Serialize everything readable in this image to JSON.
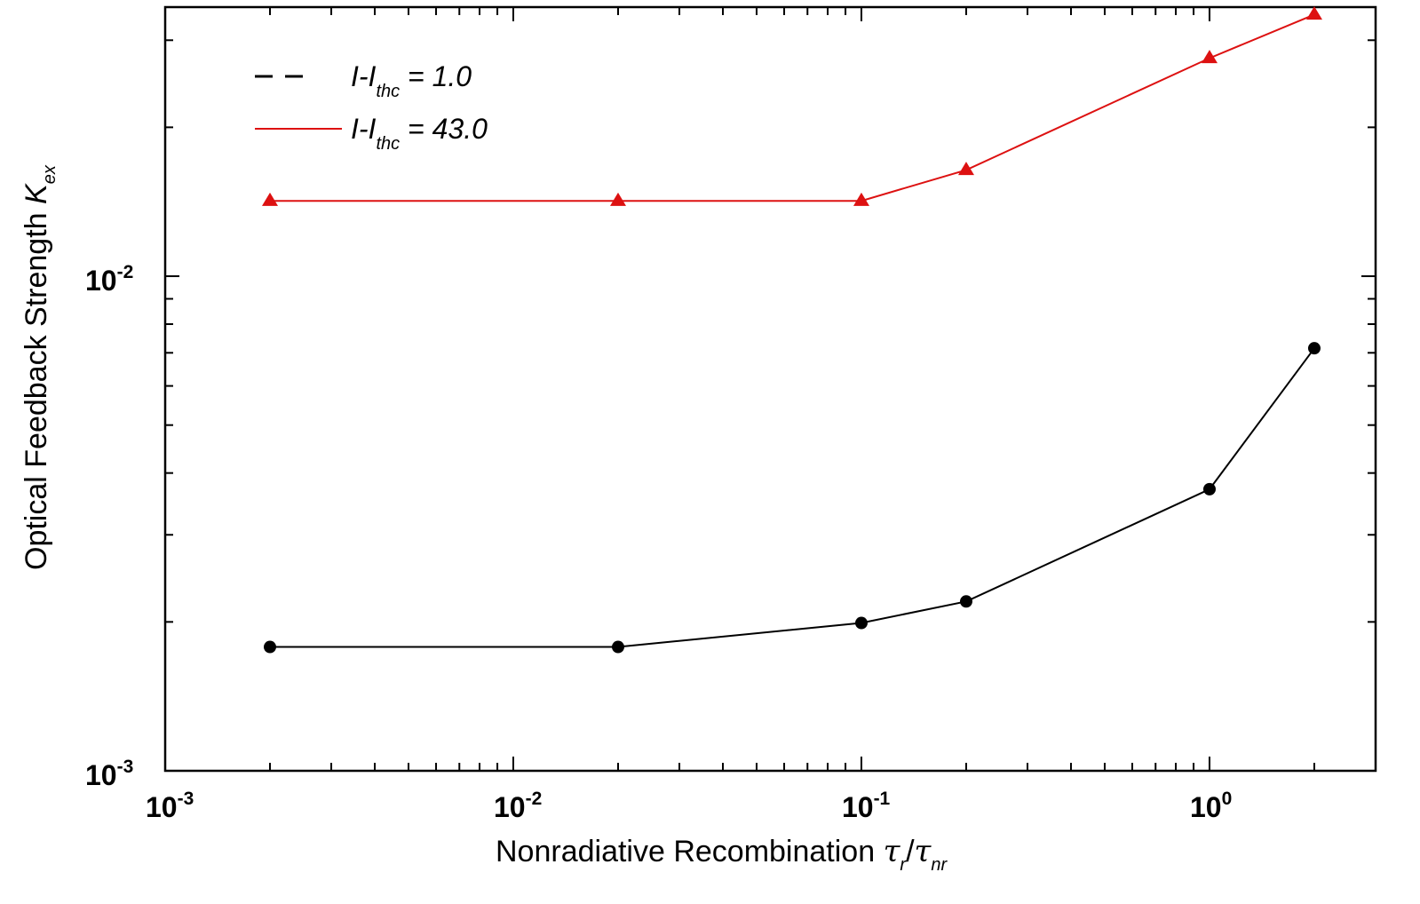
{
  "chart_data": {
    "type": "line",
    "title": "",
    "xscale": "log",
    "yscale": "log",
    "xlim": [
      0.001,
      3
    ],
    "ylim": [
      0.001,
      0.035
    ],
    "xlabel": {
      "main": "Nonradiative Recombination ",
      "tau": "τ",
      "sub_r": "r",
      "slash": "/",
      "sub_nr": "nr"
    },
    "ylabel": {
      "main": "Optical Feedback Strength ",
      "k": "K",
      "sub": "ex"
    },
    "xticks": [
      {
        "value": 0.001,
        "base": "10",
        "exp": "-3"
      },
      {
        "value": 0.01,
        "base": "10",
        "exp": "-2"
      },
      {
        "value": 0.1,
        "base": "10",
        "exp": "-1"
      },
      {
        "value": 1,
        "base": "10",
        "exp": "0"
      }
    ],
    "yticks": [
      {
        "value": 0.001,
        "base": "10",
        "exp": "-3"
      },
      {
        "value": 0.01,
        "base": "10",
        "exp": "-2"
      }
    ],
    "grid": false,
    "legend_position": "top-left",
    "series": [
      {
        "name": "I-Ithc = 1.0",
        "legend": {
          "i": "I-I",
          "sub": "thc",
          "rest": " = 1.0"
        },
        "color": "#000000",
        "marker": "circle",
        "legend_line": "dashed",
        "x": [
          0.002,
          0.02,
          0.1,
          0.2,
          1,
          2
        ],
        "y": [
          0.00178,
          0.00178,
          0.00199,
          0.0022,
          0.00371,
          0.00715
        ]
      },
      {
        "name": "I-Ithc = 43.0",
        "legend": {
          "i": "I-I",
          "sub": "thc",
          "rest": " = 43.0"
        },
        "color": "#dd1111",
        "marker": "triangle",
        "legend_line": "solid",
        "x": [
          0.002,
          0.02,
          0.1,
          0.2,
          1,
          2
        ],
        "y": [
          0.0142,
          0.0142,
          0.0142,
          0.0164,
          0.0276,
          0.0338
        ]
      }
    ]
  }
}
